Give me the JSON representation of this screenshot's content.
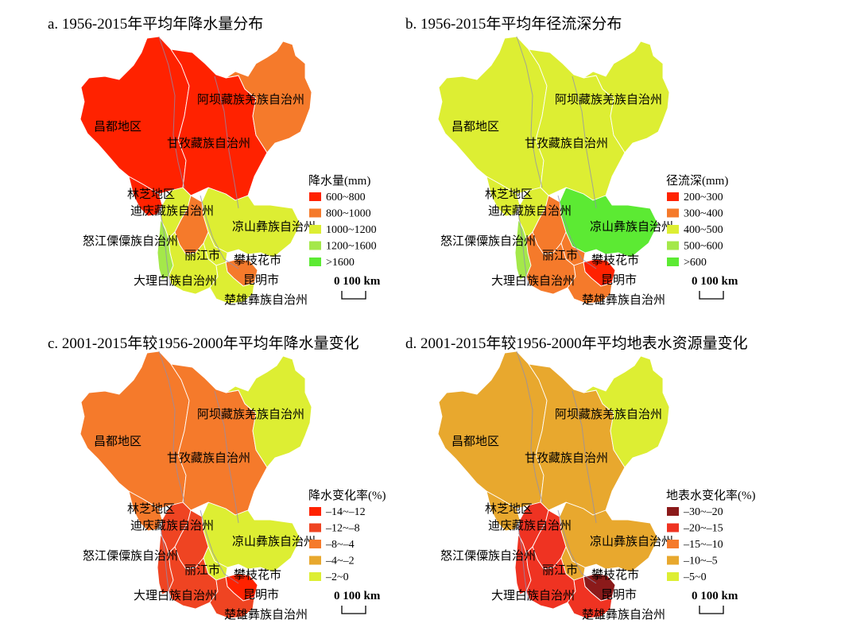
{
  "regions": [
    {
      "id": "changdu",
      "name": "昌都地区"
    },
    {
      "id": "aba",
      "name": "阿坝藏族羌族自治州"
    },
    {
      "id": "ganzi",
      "name": "甘孜藏族自治州"
    },
    {
      "id": "linzhi",
      "name": "林芝地区"
    },
    {
      "id": "diqing",
      "name": "迪庆藏族自治州"
    },
    {
      "id": "liangshan",
      "name": "凉山彝族自治州"
    },
    {
      "id": "nujiang",
      "name": "怒江傈僳族自治州"
    },
    {
      "id": "lijiang",
      "name": "丽江市"
    },
    {
      "id": "panzhihua",
      "name": "攀枝花市"
    },
    {
      "id": "dali",
      "name": "大理白族自治州"
    },
    {
      "id": "kunming",
      "name": "昆明市"
    },
    {
      "id": "chuxiong",
      "name": "楚雄彝族自治州"
    }
  ],
  "scale_bar": {
    "label": "0  100 km"
  },
  "panels": [
    {
      "id": "a",
      "title": "a. 1956-2015年平均年降水量分布",
      "legend_title": "降水量(mm)",
      "classes": [
        {
          "label": "600~800",
          "color": "#ff2200"
        },
        {
          "label": "800~1000",
          "color": "#f57a2b"
        },
        {
          "label": "1000~1200",
          "color": "#ddee33"
        },
        {
          "label": "1200~1600",
          "color": "#a4e84a"
        },
        {
          "label": ">1600",
          "color": "#5cea33"
        }
      ],
      "fills": {
        "changdu": "#ff2200",
        "ganzi": "#ff2200",
        "aba": "#f57a2b",
        "linzhi": "#ff2200",
        "diqing": "#ddee33",
        "liangshan": "#ddee33",
        "nujiang": "#a4e84a",
        "lijiang": "#f57a2b",
        "panzhihua": "#ddee33",
        "dali": "#ddee33",
        "kunming": "#f57a2b",
        "chuxiong": "#ddee33"
      }
    },
    {
      "id": "b",
      "title": "b. 1956-2015年平均年径流深分布",
      "legend_title": "径流深(mm)",
      "classes": [
        {
          "label": "200~300",
          "color": "#ff2200"
        },
        {
          "label": "300~400",
          "color": "#f57a2b"
        },
        {
          "label": "400~500",
          "color": "#ddee33"
        },
        {
          "label": "500~600",
          "color": "#a4e84a"
        },
        {
          "label": ">600",
          "color": "#5cea33"
        }
      ],
      "fills": {
        "changdu": "#ddee33",
        "ganzi": "#ddee33",
        "aba": "#ddee33",
        "linzhi": "#ddee33",
        "diqing": "#ddee33",
        "liangshan": "#5cea33",
        "nujiang": "#a4e84a",
        "lijiang": "#f57a2b",
        "panzhihua": "#f57a2b",
        "dali": "#f57a2b",
        "kunming": "#ff2200",
        "chuxiong": "#f57a2b"
      }
    },
    {
      "id": "c",
      "title": "c. 2001-2015年较1956-2000年平均年降水量变化",
      "legend_title": "降水变化率(%)",
      "classes": [
        {
          "label": "–14~–12",
          "color": "#ff2200"
        },
        {
          "label": "–12~–8",
          "color": "#ef4422"
        },
        {
          "label": "–8~–4",
          "color": "#f57a2b"
        },
        {
          "label": "–4~–2",
          "color": "#e8a82e"
        },
        {
          "label": "–2~0",
          "color": "#ddee33"
        }
      ],
      "fills": {
        "changdu": "#f57a2b",
        "ganzi": "#f57a2b",
        "aba": "#ddee33",
        "linzhi": "#f57a2b",
        "diqing": "#ef4422",
        "liangshan": "#ddee33",
        "nujiang": "#ef4422",
        "lijiang": "#ef4422",
        "panzhihua": "#ddee33",
        "dali": "#ef4422",
        "kunming": "#ff2200",
        "chuxiong": "#ef4422"
      }
    },
    {
      "id": "d",
      "title": "d. 2001-2015年较1956-2000年平均地表水资源量变化",
      "legend_title": "地表水变化率(%)",
      "classes": [
        {
          "label": "–30~–20",
          "color": "#8b1a1a"
        },
        {
          "label": "–20~–15",
          "color": "#ef3322"
        },
        {
          "label": "–15~–10",
          "color": "#f57a2b"
        },
        {
          "label": "–10~–5",
          "color": "#e8a82e"
        },
        {
          "label": "–5~0",
          "color": "#ddee33"
        }
      ],
      "fills": {
        "changdu": "#e8a82e",
        "ganzi": "#e8a82e",
        "aba": "#ddee33",
        "linzhi": "#e8a82e",
        "diqing": "#ef3322",
        "liangshan": "#e8a82e",
        "nujiang": "#ef3322",
        "lijiang": "#ef3322",
        "panzhihua": "#e8a82e",
        "dali": "#ef3322",
        "kunming": "#8b1a1a",
        "chuxiong": "#ef3322"
      }
    }
  ]
}
